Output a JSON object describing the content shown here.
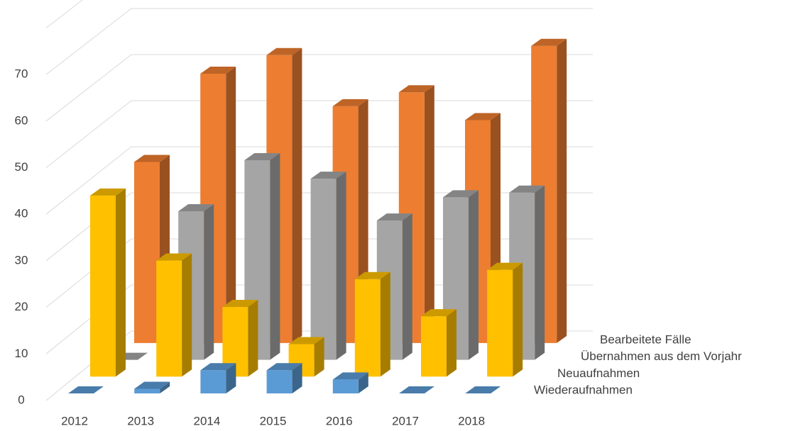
{
  "chart_data": {
    "type": "bar3d",
    "categories": [
      "2012",
      "2013",
      "2014",
      "2015",
      "2016",
      "2017",
      "2018"
    ],
    "series": [
      {
        "name": "Wiederaufnahmen",
        "color": "#5b9bd5",
        "values": [
          0,
          1,
          5,
          5,
          3,
          0,
          0
        ]
      },
      {
        "name": "Neuaufnahmen",
        "color": "#ffc000",
        "values": [
          39,
          25,
          15,
          7,
          21,
          13,
          23
        ]
      },
      {
        "name": "Übernahmen aus dem Vorjahr",
        "color": "#a5a5a5",
        "values": [
          0,
          32,
          43,
          39,
          30,
          35,
          36
        ]
      },
      {
        "name": "Bearbeitete Fälle",
        "color": "#ed7d31",
        "values": [
          39,
          58,
          62,
          51,
          54,
          48,
          64
        ]
      }
    ],
    "ylim": [
      0,
      80
    ],
    "yticks": [
      0,
      10,
      20,
      30,
      40,
      50,
      60,
      70
    ],
    "grid": true
  }
}
